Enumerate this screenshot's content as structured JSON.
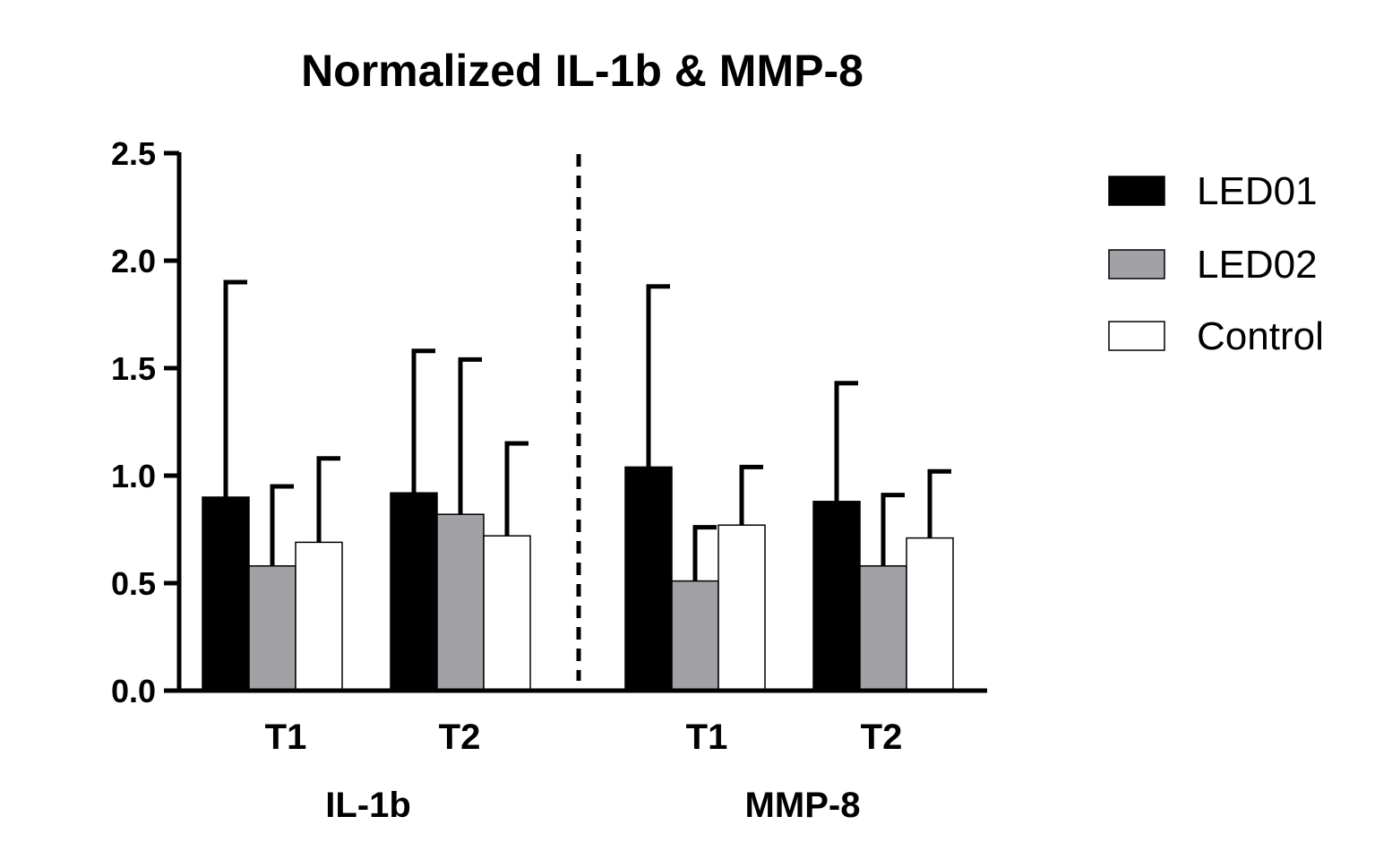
{
  "chart_data": {
    "type": "bar",
    "title": "Normalized IL-1b & MMP-8",
    "xlabel": "",
    "ylabel": "",
    "ylim": [
      0,
      2.5
    ],
    "yticks": [
      "0.0",
      "0.5",
      "1.0",
      "1.5",
      "2.0",
      "2.5"
    ],
    "ytick_values": [
      0,
      0.5,
      1.0,
      1.5,
      2.0,
      2.5
    ],
    "groups": [
      {
        "label": "IL-1b",
        "categories": [
          "T1",
          "T2"
        ]
      },
      {
        "label": "MMP-8",
        "categories": [
          "T1",
          "T2"
        ]
      }
    ],
    "series": [
      {
        "name": "LED01",
        "color": "#000000",
        "values": [
          0.9,
          0.92,
          1.04,
          0.88
        ],
        "errors": [
          1.0,
          0.66,
          0.84,
          0.55
        ]
      },
      {
        "name": "LED02",
        "color": "#a2a1a6",
        "values": [
          0.58,
          0.82,
          0.51,
          0.58
        ],
        "errors": [
          0.37,
          0.72,
          0.25,
          0.33
        ]
      },
      {
        "name": "Control",
        "color": "#ffffff",
        "values": [
          0.69,
          0.72,
          0.77,
          0.71
        ],
        "errors": [
          0.39,
          0.43,
          0.27,
          0.31
        ]
      }
    ],
    "legend_position": "top-right",
    "grid": false,
    "group_separator": "dashed"
  }
}
